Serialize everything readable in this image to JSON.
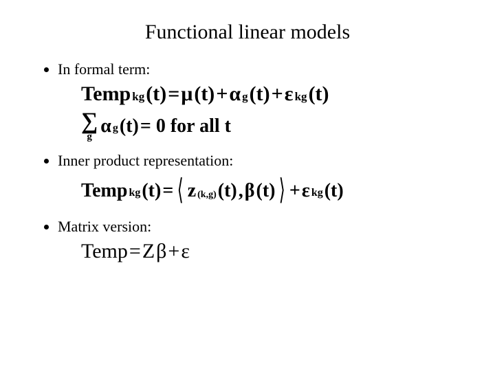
{
  "title": "Functional linear models",
  "bullets": {
    "b1": "In formal term:",
    "b2": "Inner product representation:",
    "b3": "Matrix version:"
  },
  "eq1": {
    "temp": "Temp",
    "kg": "kg",
    "t1": "(t)",
    "eq": " = ",
    "mu": "μ",
    "t2": "(t)",
    "plus1": " + ",
    "alpha": "α",
    "g": "g",
    "t3": "(t)",
    "plus2": " + ",
    "eps": "ε",
    "t4": "(t)"
  },
  "eq2": {
    "alpha": "α",
    "g": "g",
    "t": "(t)",
    "eq_zero": " = 0 for all t"
  },
  "eq3": {
    "temp": "Temp",
    "kg": "kg",
    "t1": "(t)",
    "eq": " = ",
    "z": "z",
    "zidx": "(k,g)",
    "t2": "(t)",
    "comma": ", ",
    "beta": "β",
    "t3": "(t)",
    "plus": " + ",
    "eps": "ε",
    "t4": "(t)"
  },
  "eq4": {
    "temp": "Temp",
    "eq": " = ",
    "Z": "Z",
    "beta": "β",
    "plus": " + ",
    "eps": "ε"
  },
  "style": {
    "background": "#ffffff",
    "text_color": "#000000",
    "title_fontsize": 30,
    "bullet_fontsize": 22,
    "eq_fontsize": 30,
    "font_family": "Times New Roman"
  }
}
